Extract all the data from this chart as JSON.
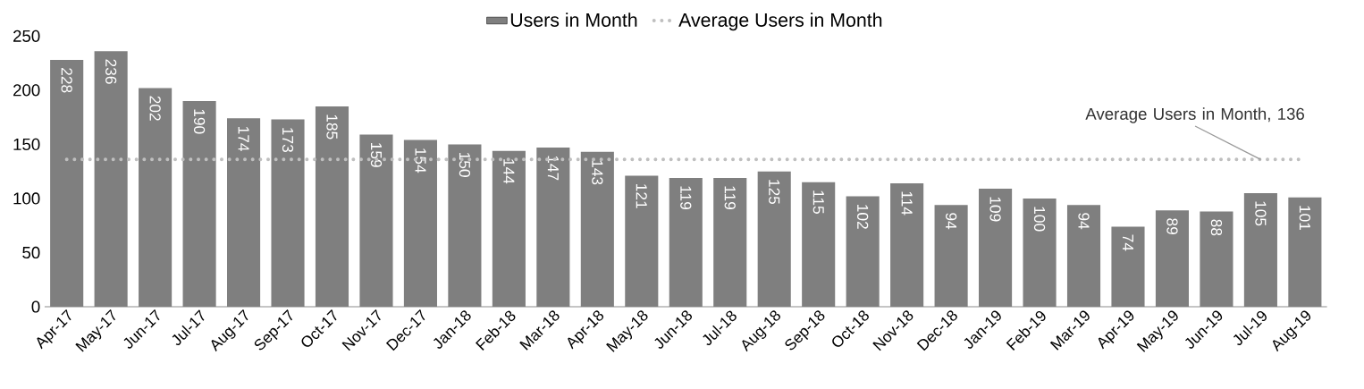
{
  "chart_data": {
    "type": "bar",
    "categories": [
      "Apr-17",
      "May-17",
      "Jun-17",
      "Jul-17",
      "Aug-17",
      "Sep-17",
      "Oct-17",
      "Nov-17",
      "Dec-17",
      "Jan-18",
      "Feb-18",
      "Mar-18",
      "Apr-18",
      "May-18",
      "Jun-18",
      "Jul-18",
      "Aug-18",
      "Sep-18",
      "Oct-18",
      "Nov-18",
      "Dec-18",
      "Jan-19",
      "Feb-19",
      "Mar-19",
      "Apr-19",
      "May-19",
      "Jun-19",
      "Jul-19",
      "Aug-19"
    ],
    "series": [
      {
        "name": "Users in Month",
        "color": "#7f7f7f",
        "values": [
          228,
          236,
          202,
          190,
          174,
          173,
          185,
          159,
          154,
          150,
          144,
          147,
          143,
          121,
          119,
          119,
          125,
          115,
          102,
          114,
          94,
          109,
          100,
          94,
          74,
          89,
          88,
          105,
          101
        ],
        "value_labels": [
          "228",
          "236",
          "202",
          "190",
          "174",
          "173",
          "185",
          "159",
          "154",
          "150",
          "144",
          "147",
          "143",
          "121",
          "119",
          "119",
          "125",
          "115",
          "102",
          "114",
          "94",
          "109",
          "100",
          "94",
          "74",
          "89",
          "88",
          "105",
          "101"
        ]
      },
      {
        "name": "Average Users in Month",
        "type": "line",
        "color": "#bfbfbf",
        "line_style": "dotted",
        "values": [
          136,
          136,
          136,
          136,
          136,
          136,
          136,
          136,
          136,
          136,
          136,
          136,
          136,
          136,
          136,
          136,
          136,
          136,
          136,
          136,
          136,
          136,
          136,
          136,
          136,
          136,
          136,
          136,
          136
        ]
      }
    ],
    "ylim": [
      0,
      250
    ],
    "yticks": [
      0,
      50,
      100,
      150,
      200,
      250
    ],
    "legend": "top",
    "grid": false,
    "annotations": [
      {
        "text": "Average Users in Month, 136",
        "x": "Jul-19",
        "y": 136
      }
    ]
  }
}
